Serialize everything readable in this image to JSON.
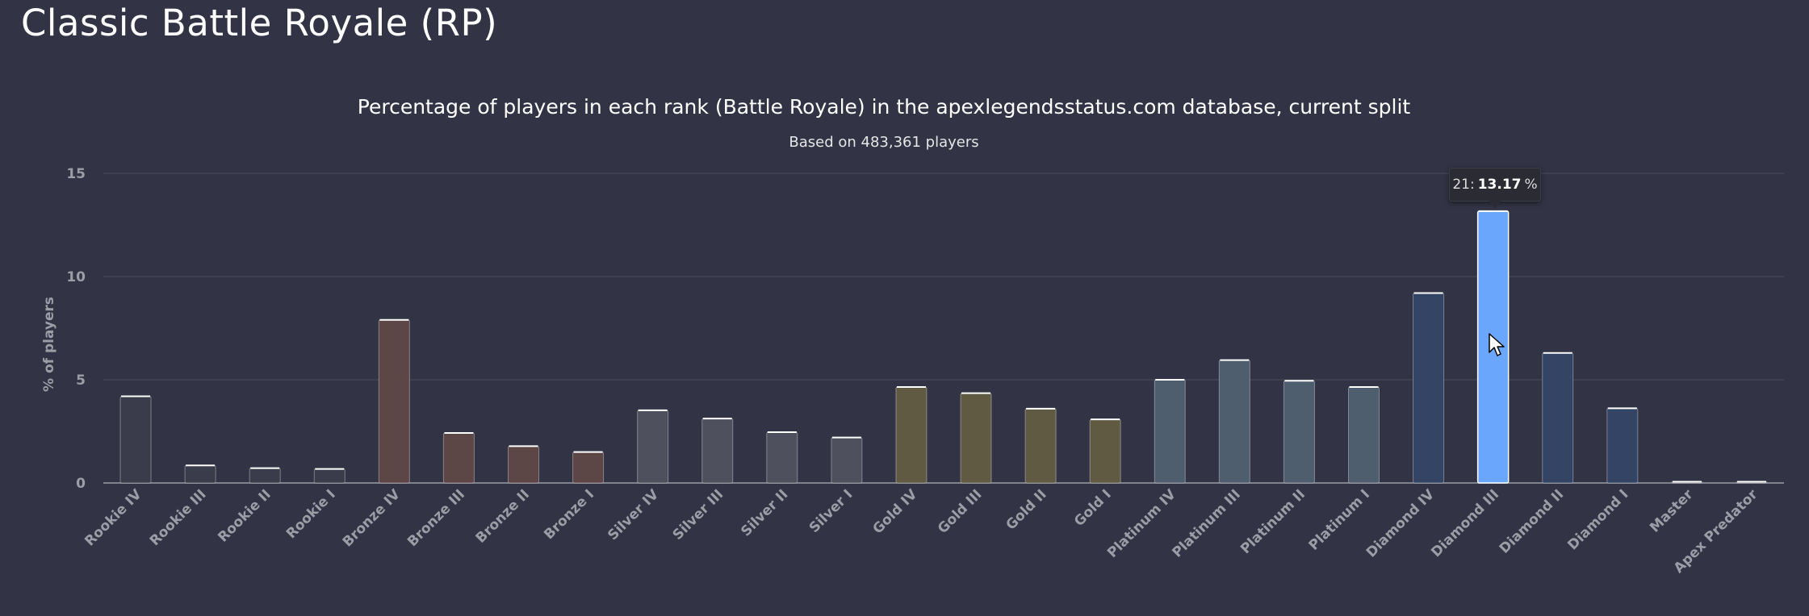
{
  "page": {
    "title": "Classic Battle Royale (RP)"
  },
  "chart_data": {
    "type": "bar",
    "title": "Percentage of players in each rank (Battle Royale) in the apexlegendsstatus.com database, current split",
    "subtitle": "Based on 483,361 players",
    "xlabel": "",
    "ylabel": "% of players",
    "ylim": [
      0,
      15
    ],
    "yticks": [
      0,
      5,
      10,
      15
    ],
    "grid": true,
    "categories": [
      "Rookie IV",
      "Rookie III",
      "Rookie II",
      "Rookie I",
      "Bronze IV",
      "Bronze III",
      "Bronze II",
      "Bronze I",
      "Silver IV",
      "Silver III",
      "Silver II",
      "Silver I",
      "Gold IV",
      "Gold III",
      "Gold II",
      "Gold I",
      "Platinum IV",
      "Platinum III",
      "Platinum II",
      "Platinum I",
      "Diamond IV",
      "Diamond III",
      "Diamond II",
      "Diamond I",
      "Master",
      "Apex Predator"
    ],
    "values": [
      4.2,
      0.85,
      0.72,
      0.68,
      7.9,
      2.42,
      1.78,
      1.5,
      3.52,
      3.12,
      2.46,
      2.2,
      4.65,
      4.35,
      3.6,
      3.08,
      5.0,
      5.95,
      4.95,
      4.65,
      9.2,
      13.17,
      6.3,
      3.62,
      0.03,
      0.02
    ],
    "colors": [
      "#3a3c4b",
      "#3a3c4b",
      "#3a3c4b",
      "#3a3c4b",
      "#5c4646",
      "#5c4646",
      "#5c4646",
      "#5c4646",
      "#4f505d",
      "#4f505d",
      "#4f505d",
      "#4f505d",
      "#615a42",
      "#615a42",
      "#615a42",
      "#615a42",
      "#4f5e6e",
      "#4f5e6e",
      "#4f5e6e",
      "#4f5e6e",
      "#344464",
      "#6aa6fb",
      "#344464",
      "#344464",
      "#3a3c4b",
      "#3a3c4b"
    ],
    "highlight_index": 21,
    "tooltip": {
      "label": "21:",
      "value": "13.17",
      "unit": "%"
    }
  }
}
